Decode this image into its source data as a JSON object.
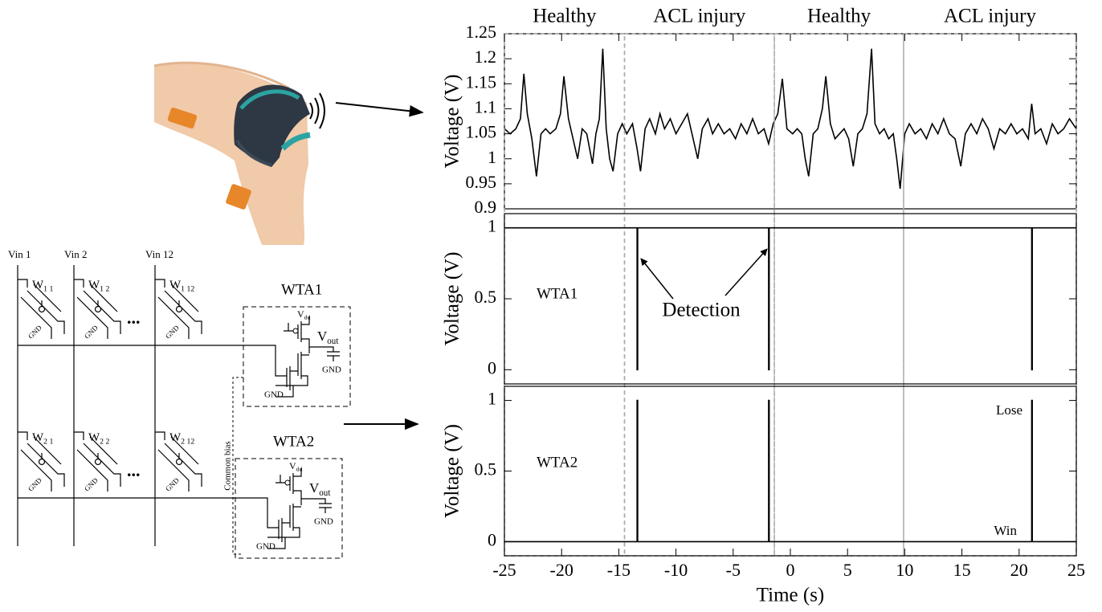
{
  "circuit": {
    "inputs": [
      "Vin 1",
      "Vin 2",
      "Vin 12"
    ],
    "rows": [
      {
        "cells": [
          {
            "weight": {
              "base": "W",
              "sub": "1 1"
            },
            "gnd": "GND"
          },
          {
            "weight": {
              "base": "W",
              "sub": "1 2"
            },
            "gnd": "GND"
          },
          {
            "weight": {
              "base": "W",
              "sub": "1 12"
            },
            "gnd": "GND"
          }
        ],
        "ellipsis": "...",
        "wta": {
          "label": "WTA1",
          "vdd": {
            "base": "V",
            "sub": "dd"
          },
          "vout": {
            "base": "V",
            "sub": "out"
          },
          "gnd_out": "GND",
          "gnd_in": "GND"
        }
      },
      {
        "cells": [
          {
            "weight": {
              "base": "W",
              "sub": "2 1"
            },
            "gnd": "GND"
          },
          {
            "weight": {
              "base": "W",
              "sub": "2 2"
            },
            "gnd": "GND"
          },
          {
            "weight": {
              "base": "W",
              "sub": "2 12"
            },
            "gnd": "GND"
          }
        ],
        "ellipsis": "...",
        "wta": {
          "label": "WTA2",
          "vdd": {
            "base": "V",
            "sub": "dd"
          },
          "vout": {
            "base": "V",
            "sub": "out"
          },
          "gnd_out": "GND",
          "gnd_in": "GND"
        }
      }
    ],
    "common_bias": "Common bias"
  },
  "chart_data": [
    {
      "type": "line",
      "ylabel": "Voltage (V)",
      "color": "#000000",
      "xlim": [
        -25,
        25
      ],
      "ylim": [
        0.9,
        1.25
      ],
      "yticks": [
        0.9,
        0.95,
        1,
        1.05,
        1.1,
        1.15,
        1.2,
        1.25
      ],
      "regions": [
        {
          "label": "Healthy",
          "start": -25,
          "end": -14.5
        },
        {
          "label": "ACL injury",
          "start": -14.5,
          "end": -1.4
        },
        {
          "label": "Healthy",
          "start": -1.4,
          "end": 9.9
        },
        {
          "label": "ACL injury",
          "start": 9.9,
          "end": 25
        }
      ],
      "x": [
        -25,
        -24.5,
        -24,
        -23.6,
        -23.3,
        -23,
        -22.6,
        -22.2,
        -21.8,
        -21.4,
        -21,
        -20.5,
        -20.1,
        -19.8,
        -19.4,
        -19,
        -18.6,
        -18.2,
        -17.8,
        -17.3,
        -17,
        -16.7,
        -16.4,
        -16.1,
        -15.8,
        -15.5,
        -15.1,
        -14.7,
        -14.3,
        -13.8,
        -13.4,
        -13.1,
        -12.7,
        -12.3,
        -11.8,
        -11.4,
        -11,
        -10.5,
        -10,
        -9.5,
        -9,
        -8.5,
        -8.1,
        -7.7,
        -7.2,
        -6.8,
        -6.3,
        -5.8,
        -5.3,
        -4.8,
        -4.3,
        -3.8,
        -3.3,
        -2.8,
        -2.3,
        -1.9,
        -1.5,
        -1.1,
        -0.7,
        -0.3,
        0.2,
        0.6,
        1,
        1.3,
        1.6,
        2,
        2.4,
        2.8,
        3.1,
        3.5,
        3.9,
        4.3,
        4.7,
        5.1,
        5.5,
        5.9,
        6.3,
        6.7,
        7.1,
        7.4,
        7.8,
        8.2,
        8.6,
        9,
        9.3,
        9.6,
        10,
        10.4,
        10.9,
        11.4,
        11.9,
        12.4,
        12.9,
        13.4,
        13.9,
        14.4,
        14.9,
        15.3,
        15.8,
        16.3,
        16.8,
        17.3,
        17.8,
        18.3,
        18.8,
        19.3,
        19.8,
        20.3,
        20.8,
        21.1,
        21.4,
        21.9,
        22.4,
        22.9,
        23.4,
        23.9,
        24.4,
        25
      ],
      "values": [
        1.06,
        1.05,
        1.06,
        1.08,
        1.17,
        1.09,
        1.04,
        0.965,
        1.05,
        1.06,
        1.05,
        1.06,
        1.09,
        1.165,
        1.08,
        1.04,
        1.0,
        1.06,
        1.05,
        0.99,
        1.05,
        1.08,
        1.22,
        1.06,
        1.0,
        0.975,
        1.05,
        1.07,
        1.05,
        1.07,
        1.02,
        0.975,
        1.06,
        1.08,
        1.05,
        1.09,
        1.06,
        1.08,
        1.05,
        1.07,
        1.09,
        1.04,
        1.0,
        1.06,
        1.08,
        1.05,
        1.07,
        1.05,
        1.06,
        1.04,
        1.07,
        1.05,
        1.08,
        1.05,
        1.06,
        1.03,
        1.07,
        1.09,
        1.16,
        1.06,
        1.05,
        1.06,
        1.05,
        1.0,
        0.965,
        1.05,
        1.06,
        1.1,
        1.165,
        1.07,
        1.04,
        1.05,
        1.06,
        1.04,
        0.985,
        1.05,
        1.06,
        1.09,
        1.22,
        1.07,
        1.05,
        1.06,
        1.04,
        1.05,
        1.0,
        0.94,
        1.05,
        1.07,
        1.05,
        1.06,
        1.04,
        1.07,
        1.05,
        1.08,
        1.05,
        1.04,
        0.985,
        1.05,
        1.07,
        1.05,
        1.08,
        1.06,
        1.02,
        1.06,
        1.05,
        1.07,
        1.05,
        1.06,
        1.04,
        1.11,
        1.05,
        1.06,
        1.03,
        1.07,
        1.05,
        1.06,
        1.08,
        1.06
      ]
    },
    {
      "type": "line",
      "ylabel": "Voltage (V)",
      "color": "#000000",
      "label": "WTA1",
      "annotation": "Detection",
      "xlim": [
        -25,
        25
      ],
      "ylim": [
        -0.1,
        1.1
      ],
      "yticks": [
        0,
        0.5,
        1
      ],
      "x": [
        -25,
        -13.4,
        -13.4,
        -13.35,
        -13.35,
        -1.9,
        -1.9,
        -1.85,
        -1.85,
        21.1,
        21.1,
        21.15,
        21.15,
        25
      ],
      "values": [
        1,
        1,
        0,
        0,
        1,
        1,
        0,
        0,
        1,
        1,
        0,
        0,
        1,
        1
      ]
    },
    {
      "type": "line",
      "ylabel": "Voltage (V)",
      "color": "#000000",
      "label": "WTA2",
      "annotations": [
        "Lose",
        "Win"
      ],
      "xlabel": "Time (s)",
      "xlim": [
        -25,
        25
      ],
      "xticks": [
        -25,
        -20,
        -15,
        -10,
        -5,
        0,
        5,
        10,
        15,
        20,
        25
      ],
      "ylim": [
        -0.1,
        1.1
      ],
      "yticks": [
        0,
        0.5,
        1
      ],
      "x": [
        -25,
        -13.4,
        -13.4,
        -13.35,
        -13.35,
        -1.9,
        -1.9,
        -1.85,
        -1.85,
        21.1,
        21.1,
        21.15,
        21.15,
        25
      ],
      "values": [
        0,
        0,
        1,
        1,
        0,
        0,
        1,
        1,
        0,
        0,
        1,
        1,
        0,
        0
      ]
    }
  ]
}
